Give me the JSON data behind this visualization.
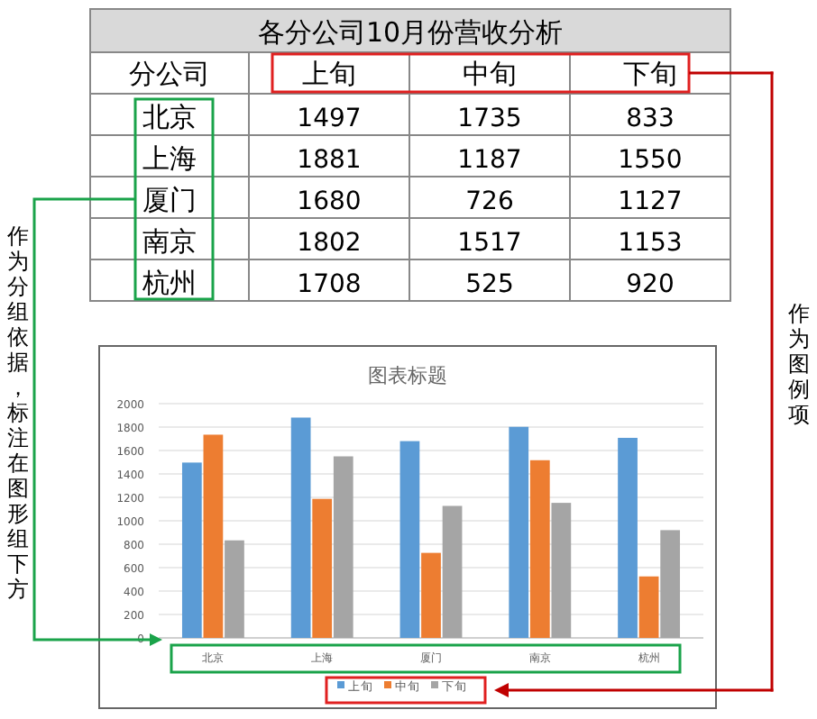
{
  "chart_data": [
    {
      "type": "heatmap",
      "title": "各分公司10月份营收分析",
      "ylabel": "分公司",
      "categories": [
        "上旬",
        "中旬",
        "下旬"
      ],
      "y_categories": [
        "北京",
        "上海",
        "厦门",
        "南京",
        "杭州"
      ],
      "cells": [
        [
          1497,
          1735,
          833
        ],
        [
          1881,
          1187,
          1550
        ],
        [
          1680,
          726,
          1127
        ],
        [
          1802,
          1517,
          1153
        ],
        [
          1708,
          525,
          920
        ]
      ],
      "data_labels": true
    },
    {
      "type": "bar",
      "title": "图表标题",
      "categories": [
        "北京",
        "上海",
        "厦门",
        "南京",
        "杭州"
      ],
      "series": [
        {
          "name": "上旬",
          "color": "#5b9bd5",
          "values": [
            1497,
            1881,
            1680,
            1802,
            1708
          ]
        },
        {
          "name": "中旬",
          "color": "#ed7d31",
          "values": [
            1735,
            1187,
            726,
            1517,
            525
          ]
        },
        {
          "name": "下旬",
          "color": "#a5a5a5",
          "values": [
            833,
            1550,
            1127,
            1153,
            920
          ]
        }
      ],
      "ylim": [
        0,
        2000
      ],
      "yticks": [
        0,
        200,
        400,
        600,
        800,
        1000,
        1200,
        1400,
        1600,
        1800,
        2000
      ],
      "grid": "y",
      "legend": "bottom",
      "annotations": [
        "作为分组依据，标注在图形组下方",
        "作为图例项"
      ]
    }
  ]
}
